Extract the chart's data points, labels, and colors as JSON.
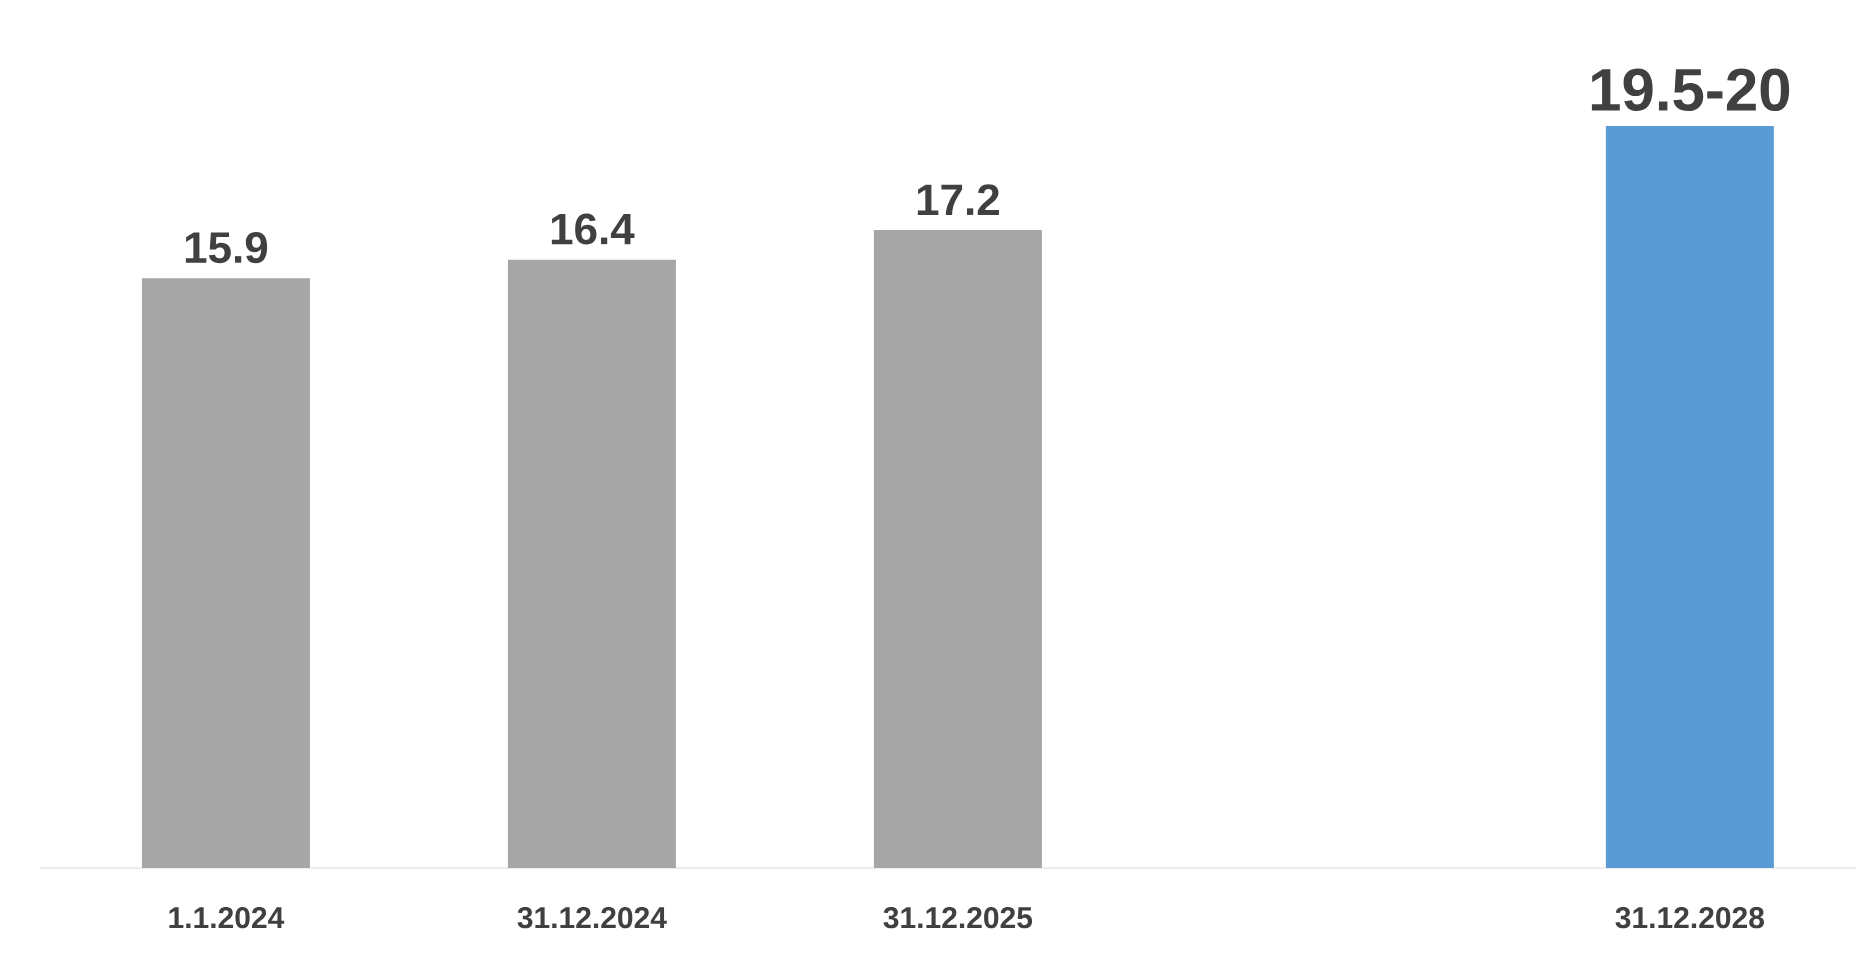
{
  "chart_data": {
    "type": "bar",
    "categories": [
      "1.1.2024",
      "31.12.2024",
      "31.12.2025",
      null,
      "31.12.2028"
    ],
    "values": [
      15.9,
      16.4,
      17.2,
      null,
      20
    ],
    "value_labels": [
      "15.9",
      "16.4",
      "17.2",
      null,
      "19.5-20"
    ],
    "colors": [
      "#a6a6a6",
      "#a6a6a6",
      "#a6a6a6",
      "#a6a6a6",
      "#5b9bd5"
    ],
    "tick_labels": "x"
  }
}
